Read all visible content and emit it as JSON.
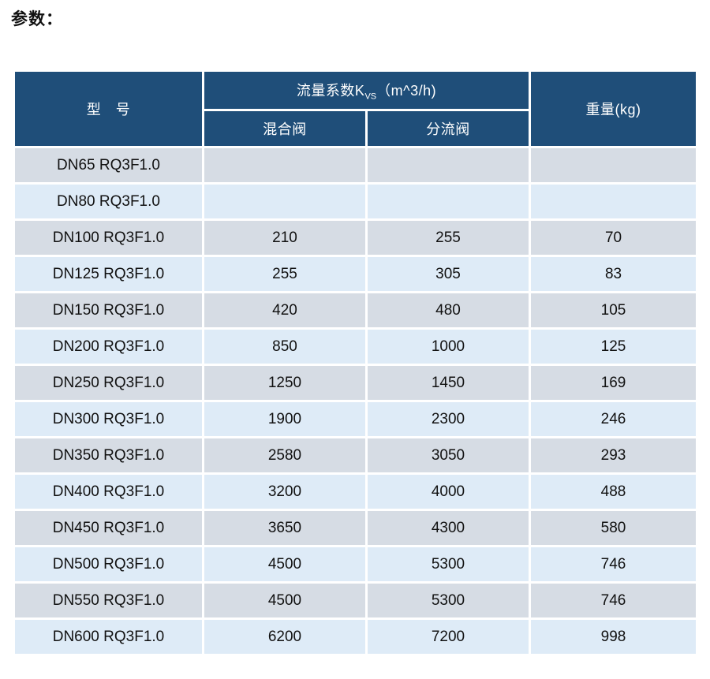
{
  "page": {
    "title": "参数："
  },
  "colors": {
    "header_bg": "#1f4e79",
    "header_text": "#ffffff",
    "row_gray": "#d6dce4",
    "row_blue": "#deebf7",
    "border": "#ffffff"
  },
  "table": {
    "model_header": "型　号",
    "kvs_header": {
      "prefix": "流量系数K",
      "sub": "VS",
      "suffix": "（m^3/h)"
    },
    "mixing_header": "混合阀",
    "diverting_header": "分流阀",
    "weight_header": "重量(kg)",
    "rows": [
      {
        "model": "DN65 RQ3F1.0",
        "mixing": "",
        "diverting": "",
        "weight": ""
      },
      {
        "model": "DN80 RQ3F1.0",
        "mixing": "",
        "diverting": "",
        "weight": ""
      },
      {
        "model": "DN100 RQ3F1.0",
        "mixing": "210",
        "diverting": "255",
        "weight": "70"
      },
      {
        "model": "DN125 RQ3F1.0",
        "mixing": "255",
        "diverting": "305",
        "weight": "83"
      },
      {
        "model": "DN150 RQ3F1.0",
        "mixing": "420",
        "diverting": "480",
        "weight": "105"
      },
      {
        "model": "DN200 RQ3F1.0",
        "mixing": "850",
        "diverting": "1000",
        "weight": "125"
      },
      {
        "model": "DN250 RQ3F1.0",
        "mixing": "1250",
        "diverting": "1450",
        "weight": "169"
      },
      {
        "model": "DN300 RQ3F1.0",
        "mixing": "1900",
        "diverting": "2300",
        "weight": "246"
      },
      {
        "model": "DN350 RQ3F1.0",
        "mixing": "2580",
        "diverting": "3050",
        "weight": "293"
      },
      {
        "model": "DN400 RQ3F1.0",
        "mixing": "3200",
        "diverting": "4000",
        "weight": "488"
      },
      {
        "model": "DN450 RQ3F1.0",
        "mixing": "3650",
        "diverting": "4300",
        "weight": "580"
      },
      {
        "model": "DN500 RQ3F1.0",
        "mixing": "4500",
        "diverting": "5300",
        "weight": "746"
      },
      {
        "model": "DN550 RQ3F1.0",
        "mixing": "4500",
        "diverting": "5300",
        "weight": "746"
      },
      {
        "model": "DN600 RQ3F1.0",
        "mixing": "6200",
        "diverting": "7200",
        "weight": "998"
      }
    ]
  }
}
